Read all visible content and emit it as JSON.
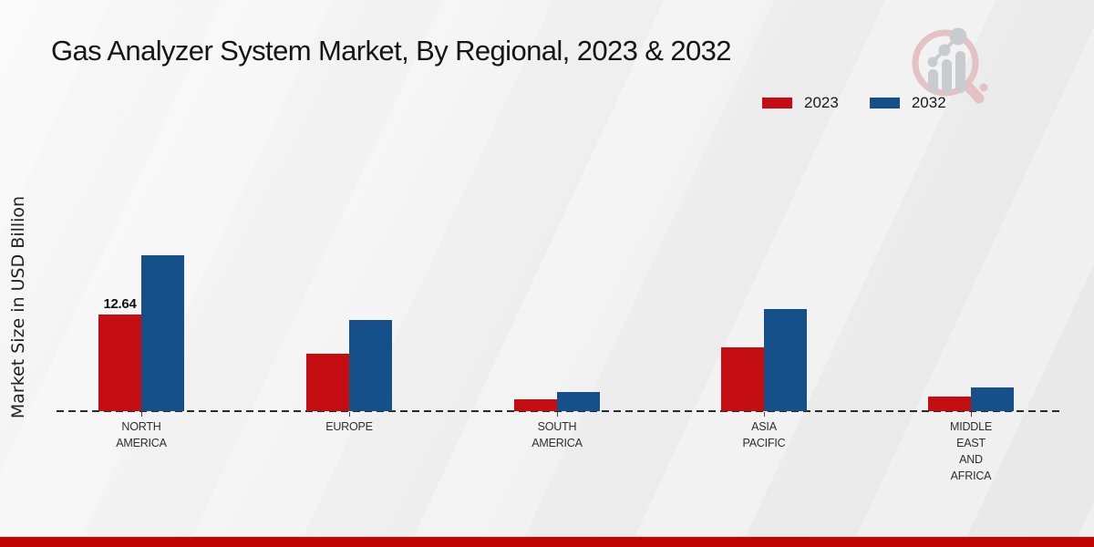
{
  "page": {
    "footer_bar_color": "#BE0404",
    "background_color": "#EDEDED",
    "logo_name": "market-research-future-logo"
  },
  "chart_data": {
    "type": "bar",
    "title": "Gas Analyzer System Market, By Regional, 2023 & 2032",
    "xlabel": "",
    "ylabel": "Market Size in USD Billion",
    "categories": [
      "NORTH AMERICA",
      "EUROPE",
      "SOUTH AMERICA",
      "ASIA PACIFIC",
      "MIDDLE EAST AND AFRICA"
    ],
    "category_label_lines": [
      [
        "NORTH",
        "AMERICA"
      ],
      [
        "EUROPE"
      ],
      [
        "SOUTH",
        "AMERICA"
      ],
      [
        "ASIA",
        "PACIFIC"
      ],
      [
        "MIDDLE",
        "EAST",
        "AND",
        "AFRICA"
      ]
    ],
    "series": [
      {
        "name": "2023",
        "color": "#C40D10",
        "values": [
          12.64,
          7.5,
          1.6,
          8.3,
          1.9
        ]
      },
      {
        "name": "2032",
        "color": "#15508B",
        "values": [
          20.4,
          11.9,
          2.5,
          13.4,
          3.1
        ]
      }
    ],
    "annotations": [
      {
        "series_index": 0,
        "category_index": 0,
        "text": "12.64"
      }
    ],
    "unit": "USD Billion",
    "ylim": [
      0,
      25
    ],
    "grid": false,
    "axis_line_style": "dashed",
    "legend_position": "top-right"
  }
}
